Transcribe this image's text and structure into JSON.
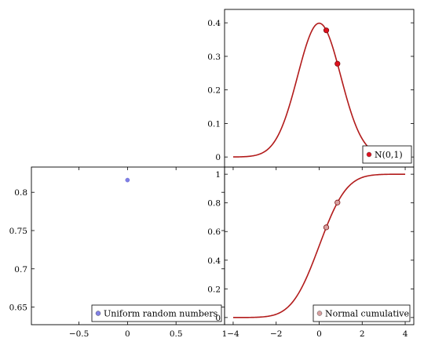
{
  "chart_data": [
    {
      "id": "pdf",
      "type": "line",
      "xlim": [
        -4.4,
        4.4
      ],
      "ylim": [
        -0.03,
        0.44
      ],
      "xticks": [],
      "yticks": [
        0,
        0.1,
        0.2,
        0.3,
        0.4
      ],
      "ytick_labels": [
        "0",
        "0.1",
        "0.2",
        "0.3",
        "0.4"
      ],
      "series": [
        {
          "kind": "curve",
          "function": "normal_pdf",
          "x_range": [
            -4,
            4
          ],
          "color": "#b21b1b",
          "markers": [
            {
              "x": 0.33,
              "y": 0.3776
            },
            {
              "x": 0.85,
              "y": 0.278
            }
          ]
        }
      ],
      "legend": {
        "label": "N(0,1)",
        "position": "bottom-right",
        "marker_color": "#e0101e"
      }
    },
    {
      "id": "uniform",
      "type": "scatter",
      "xlim": [
        -0.99,
        1.0
      ],
      "ylim": [
        0.627,
        0.833
      ],
      "xticks": [
        -0.5,
        0,
        0.5,
        1
      ],
      "xtick_labels": [
        "−0.5",
        "0",
        "0.5",
        "1"
      ],
      "yticks": [
        0.65,
        0.7,
        0.75,
        0.8
      ],
      "ytick_labels": [
        "0.65",
        "0.7",
        "0.75",
        "0.8"
      ],
      "series": [
        {
          "kind": "points",
          "color": "#8080e6",
          "points": [
            {
              "x": 0,
              "y": 0.816
            }
          ]
        }
      ],
      "legend": {
        "label": "Uniform random numbers",
        "position": "bottom-right",
        "marker_color": "#8080e6"
      }
    },
    {
      "id": "cdf",
      "type": "line",
      "xlim": [
        -4.4,
        4.4
      ],
      "ylim": [
        -0.05,
        1.05
      ],
      "xticks": [
        -4,
        -2,
        0,
        2,
        4
      ],
      "xtick_labels": [
        "−4",
        "−2",
        "0",
        "2",
        "4"
      ],
      "yticks": [
        0,
        0.2,
        0.4,
        0.6,
        0.8,
        1
      ],
      "ytick_labels": [
        "0",
        "0.2",
        "0.4",
        "0.6",
        "0.8",
        "1"
      ],
      "series": [
        {
          "kind": "curve",
          "function": "normal_cdf",
          "x_range": [
            -4,
            4
          ],
          "color": "#b21b1b",
          "markers": [
            {
              "x": 0.33,
              "y": 0.6293
            },
            {
              "x": 0.85,
              "y": 0.8023
            }
          ]
        }
      ],
      "legend": {
        "label": "Normal cumulative",
        "position": "bottom-right",
        "marker_color": "#d8a0a0"
      }
    }
  ]
}
